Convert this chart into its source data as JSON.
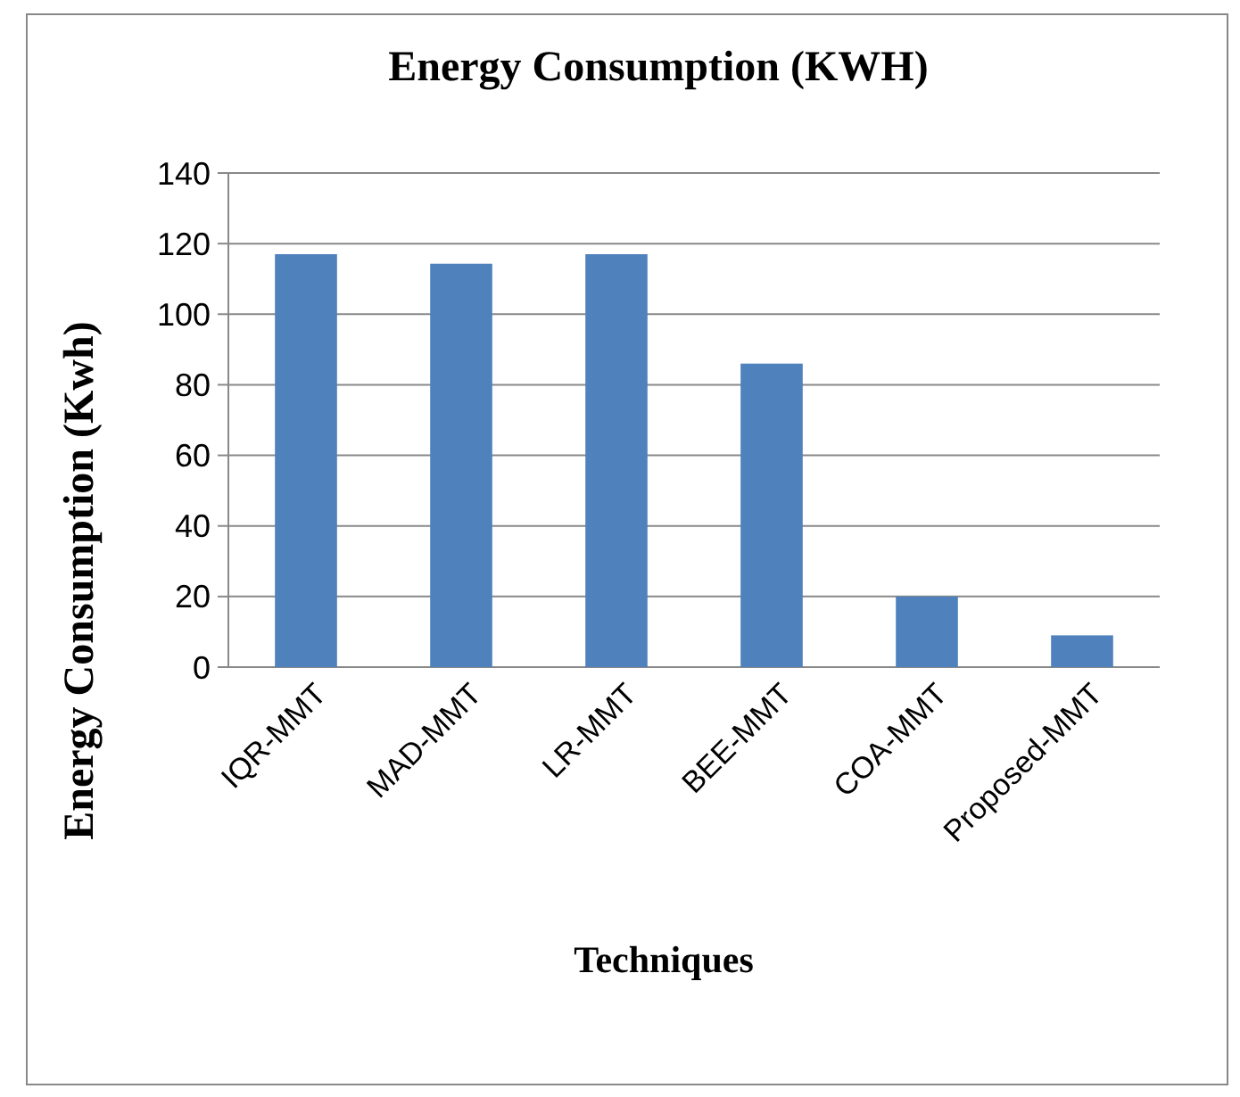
{
  "chart_data": {
    "type": "bar",
    "title": "Energy Consumption (KWH)",
    "xlabel": "Techniques",
    "ylabel": "Energy Consumption (Kwh)",
    "categories": [
      "IQR-MMT",
      "MAD-MMT",
      "LR-MMT",
      "BEE-MMT",
      "COA-MMT",
      "Proposed-MMT"
    ],
    "values": [
      117,
      114.3,
      117,
      86,
      20,
      9
    ],
    "color": "#4f81bd",
    "ylim": [
      0,
      140
    ],
    "yticks": [
      0,
      20,
      40,
      60,
      80,
      100,
      120,
      140
    ],
    "grid": "y"
  }
}
